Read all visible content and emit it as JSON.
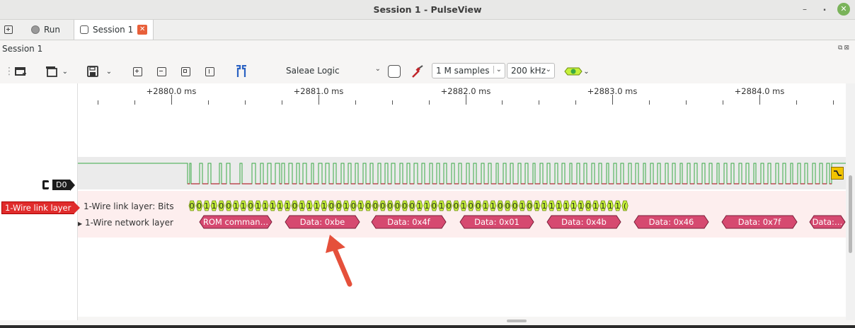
{
  "window": {
    "title": "Session 1 - PulseView"
  },
  "tabbar": {
    "run_label": "Run",
    "session_tab_label": "Session 1"
  },
  "session": {
    "label": "Session 1"
  },
  "toolbar": {
    "device": "Saleae Logic",
    "samples": "1 M samples",
    "samplerate": "200 kHz"
  },
  "ruler": {
    "labels": [
      "+2880.0 ms",
      "+2881.0 ms",
      "+2882.0 ms",
      "+2883.0 ms",
      "+2884.0 ms"
    ]
  },
  "channel": {
    "name": "D0"
  },
  "decoder": {
    "name": "1-Wire link layer",
    "bits_row_label": "1-Wire link layer: Bits",
    "network_row_label": "1-Wire network layer",
    "bits": [
      "0",
      "0",
      "1",
      "1",
      "0",
      "0",
      "1",
      "1",
      "0",
      "1",
      "1",
      "1",
      "1",
      "1",
      "0",
      "1",
      "1",
      "1",
      "1",
      "0",
      "0",
      "1",
      "0",
      "1",
      "0",
      "0",
      "0",
      "0",
      "0",
      "0",
      "0",
      "1",
      "1",
      "0",
      "1",
      "0",
      "0",
      "1",
      "0",
      "0",
      "1",
      "1",
      "0",
      "0",
      "0",
      "1",
      "0",
      "1",
      "1",
      "1",
      "1",
      "1",
      "1",
      "1",
      "0",
      "1",
      "1",
      "1",
      "1",
      "("
    ],
    "network_labels": [
      "ROM comman…",
      "Data: 0xbe",
      "Data: 0x4f",
      "Data: 0x01",
      "Data: 0x4b",
      "Data: 0x46",
      "Data: 0x7f",
      "Data:…"
    ]
  },
  "colors": {
    "accent_red": "#e02c2c",
    "network_fill": "#d64970",
    "bit_fill": "#c5f03a",
    "signal_green": "#3aa845",
    "signal_red": "#b0202b",
    "annotation_arrow": "#e5503b"
  }
}
